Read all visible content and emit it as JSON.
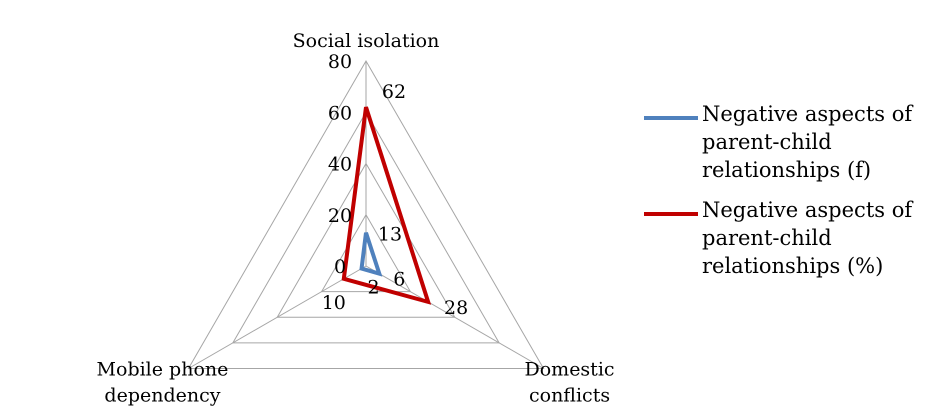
{
  "chart_data": {
    "type": "radar",
    "axes": [
      "Social isolation",
      "Domestic conflicts",
      "Mobile phone dependency"
    ],
    "axis_label_lines": [
      [
        "Social isolation"
      ],
      [
        "Domestic",
        "conflicts"
      ],
      [
        "Mobile phone",
        "dependency"
      ]
    ],
    "rmax": 80,
    "ticks": [
      0,
      20,
      40,
      60,
      80
    ],
    "tick_labels": [
      "0",
      "20",
      "40",
      "60",
      "80"
    ],
    "grid": true,
    "legend_position": "right",
    "series": [
      {
        "name": "Negative aspects of parent-child relationships (f)",
        "values": [
          13,
          6,
          2
        ],
        "color": "#4f81bd",
        "labels": [
          "13",
          "6",
          "2"
        ]
      },
      {
        "name": "Negative aspects of parent-child relationships (%)",
        "values": [
          62,
          28,
          10
        ],
        "color": "#c00000",
        "labels": [
          "62",
          "28",
          "10"
        ]
      }
    ]
  }
}
